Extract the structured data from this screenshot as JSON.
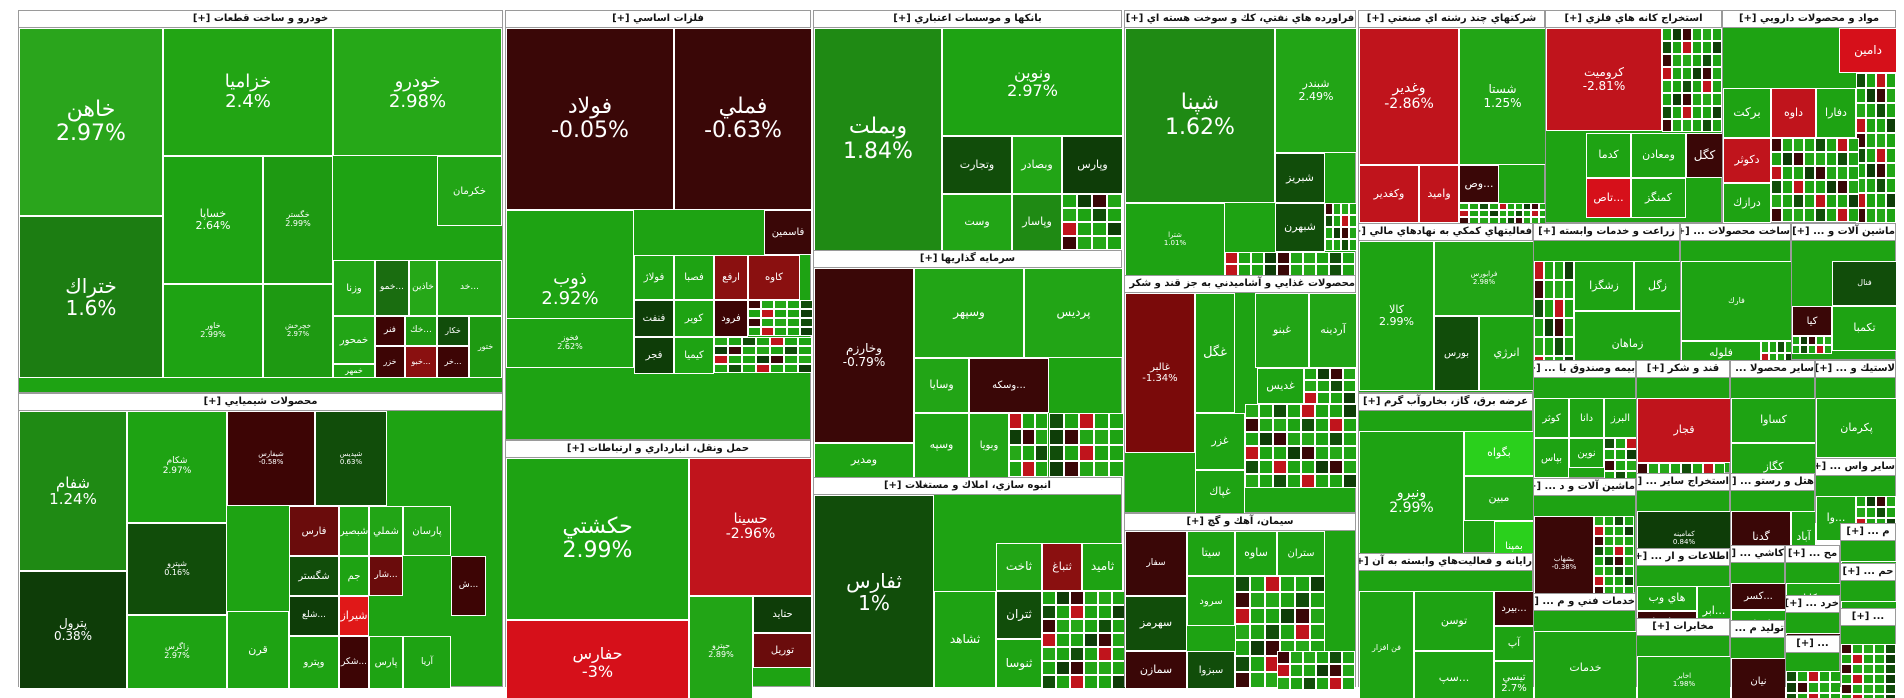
{
  "chart_data": {
    "type": "treemap",
    "title": "Market treemap by sector",
    "color_scale": {
      "positive": "#1fa80f",
      "negative": "#d0101a"
    },
    "sectors": [
      {
        "name": "خودرو و ساخت قطعات [+]",
        "tiles": [
          {
            "symbol": "خاهن",
            "change": "2.97%"
          },
          {
            "symbol": "خزاميا",
            "change": "2.4%"
          },
          {
            "symbol": "خودرو",
            "change": "2.98%"
          },
          {
            "symbol": "ختراك",
            "change": "1.6%"
          },
          {
            "symbol": "خساپا",
            "change": "2.64%"
          },
          {
            "symbol": "خگستر",
            "change": "2.99%"
          },
          {
            "symbol": "خاور",
            "change": "2.99%"
          },
          {
            "symbol": "خچرخش",
            "change": "2.97%"
          },
          {
            "symbol": "خكرمان",
            "change": ""
          },
          {
            "symbol": "وزنا",
            "change": ""
          },
          {
            "symbol": "خمو...",
            "change": ""
          },
          {
            "symbol": "خاذين",
            "change": ""
          },
          {
            "symbol": "خد...",
            "change": ""
          },
          {
            "symbol": "خمحور",
            "change": ""
          },
          {
            "symbol": "فنر",
            "change": ""
          },
          {
            "symbol": "خك...",
            "change": ""
          },
          {
            "symbol": "خكار",
            "change": ""
          },
          {
            "symbol": "خزر",
            "change": ""
          },
          {
            "symbol": "خبو...",
            "change": ""
          },
          {
            "symbol": "خر...",
            "change": ""
          },
          {
            "symbol": "خمهر",
            "change": ""
          },
          {
            "symbol": "ختور",
            "change": ""
          }
        ]
      },
      {
        "name": "محصولات شيميايي [+]",
        "tiles": [
          {
            "symbol": "شفام",
            "change": "1.24%"
          },
          {
            "symbol": "شكام",
            "change": "2.97%"
          },
          {
            "symbol": "شيفارس",
            "change": "-0.58%"
          },
          {
            "symbol": "شپديس",
            "change": "0.63%"
          },
          {
            "symbol": "شپترو",
            "change": "0.16%"
          },
          {
            "symbol": "پترول",
            "change": "0.38%"
          },
          {
            "symbol": "زاگرس",
            "change": "2.97%"
          },
          {
            "symbol": "فارس",
            "change": ""
          },
          {
            "symbol": "شبصير",
            "change": ""
          },
          {
            "symbol": "شملي",
            "change": ""
          },
          {
            "symbol": "پارسان",
            "change": ""
          },
          {
            "symbol": "شگستر",
            "change": ""
          },
          {
            "symbol": "جم",
            "change": ""
          },
          {
            "symbol": "شار...",
            "change": ""
          },
          {
            "symbol": "ش...",
            "change": ""
          },
          {
            "symbol": "شلع...",
            "change": ""
          },
          {
            "symbol": "وپترو",
            "change": ""
          },
          {
            "symbol": "شكر...",
            "change": ""
          },
          {
            "symbol": "قرن",
            "change": ""
          },
          {
            "symbol": "شيراز",
            "change": ""
          },
          {
            "symbol": "پارس",
            "change": ""
          },
          {
            "symbol": "آريا",
            "change": ""
          }
        ]
      },
      {
        "name": "فلزات اساسي [+]",
        "tiles": [
          {
            "symbol": "فولاد",
            "change": "-0.05%"
          },
          {
            "symbol": "فملي",
            "change": "-0.63%"
          },
          {
            "symbol": "ذوب",
            "change": "2.92%"
          },
          {
            "symbol": "فخوز",
            "change": "2.62%"
          },
          {
            "symbol": "فاسمين",
            "change": ""
          },
          {
            "symbol": "فولاژ",
            "change": ""
          },
          {
            "symbol": "فصبا",
            "change": ""
          },
          {
            "symbol": "ارفع",
            "change": ""
          },
          {
            "symbol": "كاوه",
            "change": ""
          },
          {
            "symbol": "فنفت",
            "change": ""
          },
          {
            "symbol": "كوير",
            "change": ""
          },
          {
            "symbol": "فرود",
            "change": ""
          },
          {
            "symbol": "كيميا",
            "change": ""
          },
          {
            "symbol": "فجر",
            "change": ""
          }
        ]
      },
      {
        "name": "حمل ونقل، انبارداري و ارتباطات [+]",
        "tiles": [
          {
            "symbol": "حكشتي",
            "change": "2.99%"
          },
          {
            "symbol": "حسينا",
            "change": "-2.96%"
          },
          {
            "symbol": "حفارس",
            "change": "-3%"
          },
          {
            "symbol": "حتايد",
            "change": ""
          },
          {
            "symbol": "توريل",
            "change": ""
          },
          {
            "symbol": "حپترو",
            "change": "2.89%"
          }
        ]
      },
      {
        "name": "بانكها و موسسات اعتباري [+]",
        "tiles": [
          {
            "symbol": "وبملت",
            "change": "1.84%"
          },
          {
            "symbol": "ونوين",
            "change": "2.97%"
          },
          {
            "symbol": "وتجارت",
            "change": ""
          },
          {
            "symbol": "وبصادر",
            "change": ""
          },
          {
            "symbol": "وپارس",
            "change": ""
          },
          {
            "symbol": "وست",
            "change": ""
          },
          {
            "symbol": "وپاسار",
            "change": ""
          }
        ]
      },
      {
        "name": "سرمايه گذاريها [+]",
        "tiles": [
          {
            "symbol": "وخارزم",
            "change": "-0.79%"
          },
          {
            "symbol": "وسپهر",
            "change": ""
          },
          {
            "symbol": "پرديس",
            "change": ""
          },
          {
            "symbol": "وسايا",
            "change": ""
          },
          {
            "symbol": "وسكه...",
            "change": ""
          },
          {
            "symbol": "وسپه",
            "change": ""
          },
          {
            "symbol": "وبويا",
            "change": ""
          },
          {
            "symbol": "ومدير",
            "change": ""
          }
        ]
      },
      {
        "name": "انبوه سازي، املاك و مستغلات [+]",
        "tiles": [
          {
            "symbol": "ثفارس",
            "change": "1%"
          },
          {
            "symbol": "ثتباغ",
            "change": ""
          },
          {
            "symbol": "ثاخت",
            "change": ""
          },
          {
            "symbol": "ثاميد",
            "change": ""
          },
          {
            "symbol": "ثتران",
            "change": ""
          },
          {
            "symbol": "ثنوسا",
            "change": ""
          },
          {
            "symbol": "ثشاهد",
            "change": ""
          }
        ]
      },
      {
        "name": "فراورده هاي نفتي، كك و سوخت هسته اي [+]",
        "tiles": [
          {
            "symbol": "شپنا",
            "change": "1.62%"
          },
          {
            "symbol": "شبندر",
            "change": "2.49%"
          },
          {
            "symbol": "شبريز",
            "change": ""
          },
          {
            "symbol": "شبهرن",
            "change": ""
          },
          {
            "symbol": "شترا",
            "change": "1.01%"
          }
        ]
      },
      {
        "name": "محصولات غذايي و آشاميدني به جز قند و شكر [+]",
        "tiles": [
          {
            "symbol": "غالبر",
            "change": "-1.34%"
          },
          {
            "symbol": "غگل",
            "change": ""
          },
          {
            "symbol": "غبنو",
            "change": ""
          },
          {
            "symbol": "آردينه",
            "change": ""
          },
          {
            "symbol": "غديس",
            "change": ""
          },
          {
            "symbol": "غزر",
            "change": ""
          },
          {
            "symbol": "غپاك",
            "change": ""
          }
        ]
      },
      {
        "name": "سيمان، آهك و گچ [+]",
        "tiles": [
          {
            "symbol": "سفار",
            "change": ""
          },
          {
            "symbol": "سيتا",
            "change": ""
          },
          {
            "symbol": "ساوه",
            "change": ""
          },
          {
            "symbol": "ستران",
            "change": ""
          },
          {
            "symbol": "سهرمز",
            "change": ""
          },
          {
            "symbol": "سرود",
            "change": ""
          },
          {
            "symbol": "سمازن",
            "change": ""
          },
          {
            "symbol": "سبزوا",
            "change": ""
          }
        ]
      },
      {
        "name": "شركتهاي چند رشته اي صنعتي [+]",
        "tiles": [
          {
            "symbol": "وغدير",
            "change": "-2.86%"
          },
          {
            "symbol": "شستا",
            "change": "1.25%"
          },
          {
            "symbol": "وكغدير",
            "change": ""
          },
          {
            "symbol": "واميد",
            "change": ""
          },
          {
            "symbol": "وص...",
            "change": ""
          }
        ]
      },
      {
        "name": "استخراج كانه هاي فلزي [+]",
        "tiles": [
          {
            "symbol": "كروميت",
            "change": "-2.81%"
          },
          {
            "symbol": "كگل",
            "change": ""
          },
          {
            "symbol": "ومعادن",
            "change": ""
          },
          {
            "symbol": "كدما",
            "change": ""
          },
          {
            "symbol": "تاص...",
            "change": ""
          },
          {
            "symbol": "كمنگز",
            "change": ""
          }
        ]
      },
      {
        "name": "مواد و محصولات دارويي [+]",
        "tiles": [
          {
            "symbol": "دامين",
            "change": ""
          },
          {
            "symbol": "بركت",
            "change": ""
          },
          {
            "symbol": "داوه",
            "change": ""
          },
          {
            "symbol": "دفارا",
            "change": ""
          },
          {
            "symbol": "دكوثر",
            "change": ""
          },
          {
            "symbol": "درازك",
            "change": ""
          }
        ]
      },
      {
        "name": "فعاليتهاي كمكي به نهادهاي مالي [+]",
        "tiles": [
          {
            "symbol": "كالا",
            "change": "2.99%"
          },
          {
            "symbol": "فرابورس",
            "change": "2.98%"
          },
          {
            "symbol": "انرژي",
            "change": ""
          },
          {
            "symbol": "بورس",
            "change": ""
          }
        ]
      },
      {
        "name": "عرضه برق، گاز، بخاروآب گرم [+]",
        "tiles": [
          {
            "symbol": "ونيرو",
            "change": "2.99%"
          },
          {
            "symbol": "بگواه",
            "change": ""
          },
          {
            "symbol": "مبين",
            "change": ""
          },
          {
            "symbol": "بمپنا",
            "change": ""
          }
        ]
      },
      {
        "name": "رايانه و فعاليت‌هاي وابسته به آن [+]",
        "tiles": [
          {
            "symbol": "فن افزار",
            "change": ""
          },
          {
            "symbol": "توسن",
            "change": ""
          },
          {
            "symbol": "سپ...",
            "change": ""
          },
          {
            "symbol": "بيرد...",
            "change": ""
          },
          {
            "symbol": "آپ",
            "change": ""
          },
          {
            "symbol": "تيسي",
            "change": "2.7%"
          }
        ]
      },
      {
        "name": "زراعت و خدمات وابسته [+]",
        "tiles": [
          {
            "symbol": "زشگزا",
            "change": ""
          },
          {
            "symbol": "زگل",
            "change": ""
          },
          {
            "symbol": "زماهان",
            "change": ""
          }
        ]
      },
      {
        "name": "ساخت محصولات ... [+]",
        "tiles": [
          {
            "symbol": "فارك",
            "change": ""
          },
          {
            "symbol": "فلوله",
            "change": "2.63%"
          }
        ]
      },
      {
        "name": "ماشين آلات و ... [+]",
        "tiles": [
          {
            "symbol": "تكمبا",
            "change": ""
          },
          {
            "symbol": "كيا",
            "change": ""
          },
          {
            "symbol": "فنال",
            "change": ""
          }
        ]
      },
      {
        "name": "بيمه وصندوق با ... [+]",
        "tiles": [
          {
            "symbol": "كوثر",
            "change": ""
          },
          {
            "symbol": "دانا",
            "change": ""
          },
          {
            "symbol": "البرز",
            "change": ""
          },
          {
            "symbol": "نوين",
            "change": ""
          },
          {
            "symbol": "بپاس",
            "change": ""
          },
          {
            "symbol": "ودي",
            "change": ""
          }
        ]
      },
      {
        "name": "قند و شكر [+]",
        "tiles": [
          {
            "symbol": "قجار",
            "change": ""
          }
        ]
      },
      {
        "name": "ساير محصولا ... [+]",
        "tiles": [
          {
            "symbol": "كساوا",
            "change": ""
          },
          {
            "symbol": "كگاز",
            "change": ""
          }
        ]
      },
      {
        "name": "لاستيك و ... [+]",
        "tiles": [
          {
            "symbol": "پكرمان",
            "change": ""
          }
        ]
      },
      {
        "name": "ماشين آلات و د ... [+]",
        "tiles": [
          {
            "symbol": "بشهاب",
            "change": "-0.38%"
          }
        ]
      },
      {
        "name": "استخراج ساير ... [+]",
        "tiles": [
          {
            "symbol": "كمامينه",
            "change": "0.84%"
          }
        ]
      },
      {
        "name": "اطلاعات و ار ... [+]",
        "tiles": [
          {
            "symbol": "هاي وب",
            "change": ""
          },
          {
            "symbol": "اسيا...",
            "change": ""
          },
          {
            "symbol": "ابر...",
            "change": ""
          }
        ]
      },
      {
        "name": "هتل و رستو ... [+]",
        "tiles": [
          {
            "symbol": "گدنا",
            "change": ""
          },
          {
            "symbol": "آباد",
            "change": ""
          }
        ]
      },
      {
        "name": "ساير واس ... [+]",
        "tiles": [
          {
            "symbol": "وا...",
            "change": ""
          }
        ]
      },
      {
        "name": "خدمات فني و م ... [+]",
        "tiles": [
          {
            "symbol": "خدمات",
            "change": ""
          }
        ]
      },
      {
        "name": "مخابرات [+]",
        "tiles": [
          {
            "symbol": "اخابر",
            "change": "1.98%"
          }
        ]
      },
      {
        "name": "كاشي ... [+]",
        "tiles": [
          {
            "symbol": "كسر...",
            "change": ""
          },
          {
            "symbol": "كترام",
            "change": ""
          }
        ]
      },
      {
        "name": "تولید م ... [+]",
        "tiles": [
          {
            "symbol": "نيان",
            "change": ""
          }
        ]
      },
      {
        "name": "مح ... [+]",
        "tiles": [
          {
            "symbol": "چكاپا",
            "change": ""
          }
        ]
      },
      {
        "name": "م ... [+]",
        "tiles": [
          {
            "symbol": "...",
            "change": ""
          }
        ]
      },
      {
        "name": "خرد ... [+]",
        "tiles": [
          {
            "symbol": "...",
            "change": ""
          }
        ]
      },
      {
        "name": "حم ... [+]",
        "tiles": [
          {
            "symbol": "...",
            "change": ""
          }
        ]
      },
      {
        "name": "... [+]",
        "tiles": []
      },
      {
        "name": "... [+]",
        "tiles": []
      }
    ]
  }
}
